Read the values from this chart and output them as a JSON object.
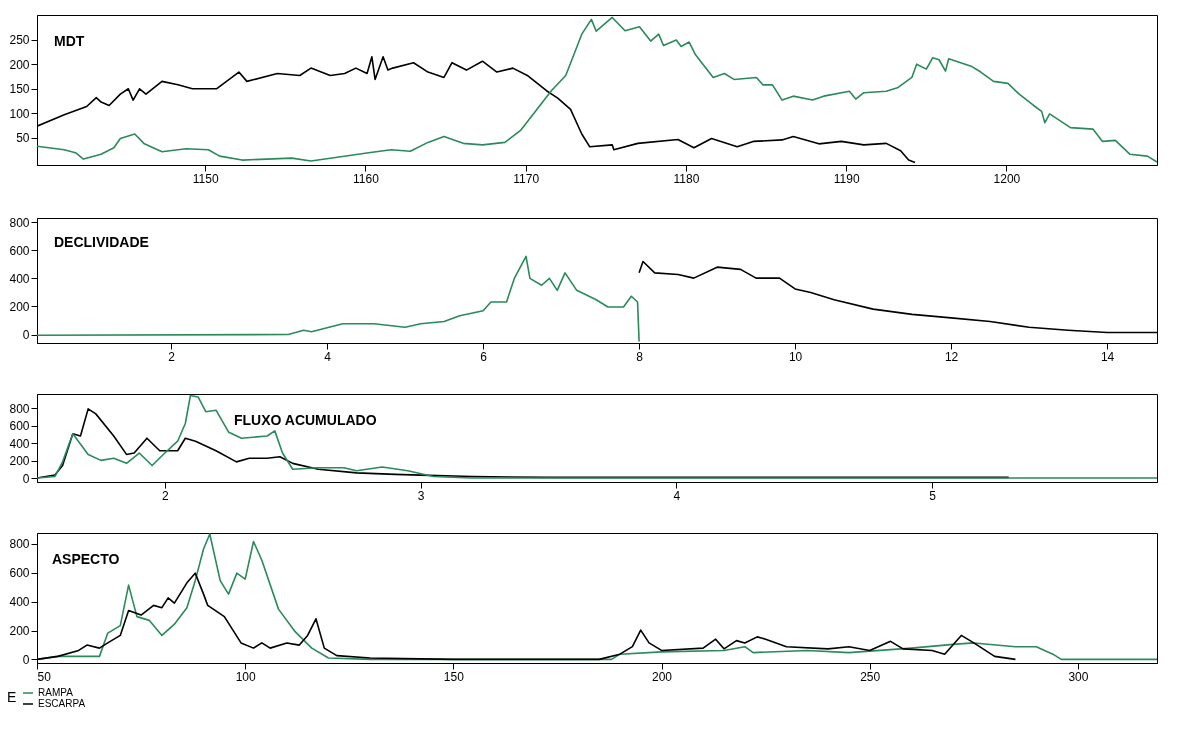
{
  "chart_data": [
    {
      "type": "line",
      "title": "MDT",
      "xlim": [
        1139.5,
        1209.4
      ],
      "ylim": [
        -5,
        300
      ],
      "xticks": [
        1150,
        1160,
        1170,
        1180,
        1190,
        1200
      ],
      "yticks": [
        50,
        100,
        150,
        200,
        250
      ],
      "grid": false,
      "legend": false,
      "series": [
        {
          "color": "#000000",
          "x": [
            1139.5,
            1141.2,
            1142.6,
            1143.2,
            1143.5,
            1144.0,
            1144.7,
            1145.2,
            1145.5,
            1145.9,
            1146.3,
            1147.3,
            1148.3,
            1149.2,
            1150.7,
            1152.1,
            1152.6,
            1154.5,
            1155.9,
            1156.6,
            1157.8,
            1158.7,
            1159.4,
            1160.1,
            1160.4,
            1160.6,
            1161.1,
            1161.4,
            1161.7,
            1163.0,
            1163.9,
            1164.9,
            1165.4,
            1166.3,
            1167.3,
            1168.2,
            1169.2,
            1170.1,
            1171.3,
            1172.0,
            1172.8,
            1173.5,
            1174.0,
            1175.4,
            1175.5,
            1177.0,
            1179.5,
            1180.5,
            1181.6,
            1183.2,
            1184.2,
            1186.0,
            1186.7,
            1188.3,
            1189.7,
            1191.1,
            1192.5,
            1193.4,
            1193.9,
            1194.3
          ],
          "values": [
            74,
            97,
            114,
            132,
            123,
            116,
            139,
            150,
            127,
            150,
            139,
            165,
            158,
            150,
            150,
            184,
            165,
            181,
            177,
            192,
            177,
            181,
            192,
            181,
            215,
            169,
            215,
            188,
            192,
            203,
            184,
            173,
            203,
            188,
            206,
            184,
            192,
            177,
            146,
            131,
            108,
            58,
            32,
            36,
            26,
            39,
            47,
            30,
            49,
            32,
            43,
            46,
            53,
            38,
            43,
            36,
            39,
            24,
            5,
            0
          ]
        },
        {
          "color": "#2a8a5a",
          "x": [
            1139.5,
            1141.2,
            1141.9,
            1142.4,
            1143.5,
            1144.3,
            1144.7,
            1145.6,
            1146.2,
            1147.3,
            1148.8,
            1150.2,
            1150.9,
            1152.3,
            1155.4,
            1156.6,
            1160.2,
            1161.6,
            1162.8,
            1163.9,
            1164.9,
            1166.1,
            1167.3,
            1168.7,
            1169.7,
            1170.6,
            1171.6,
            1172.5,
            1173.5,
            1174.1,
            1174.4,
            1175.4,
            1176.2,
            1177.1,
            1177.8,
            1178.3,
            1178.6,
            1179.4,
            1179.7,
            1180.2,
            1180.6,
            1181.7,
            1182.4,
            1183.0,
            1184.4,
            1184.8,
            1185.4,
            1186.0,
            1186.7,
            1187.9,
            1188.6,
            1190.2,
            1190.6,
            1191.1,
            1192.5,
            1193.2,
            1194.1,
            1194.4,
            1195.0,
            1195.4,
            1195.8,
            1196.2,
            1196.4,
            1197.8,
            1198.4,
            1199.2,
            1200.1,
            1200.8,
            1201.7,
            1202.2,
            1202.4,
            1202.7,
            1204.0,
            1205.4,
            1206.0,
            1206.8,
            1207.7,
            1208.8,
            1209.4
          ],
          "values": [
            33,
            26,
            20,
            7,
            17,
            30,
            49,
            58,
            38,
            22,
            28,
            26,
            13,
            5,
            9,
            3,
            20,
            26,
            23,
            41,
            53,
            39,
            36,
            41,
            66,
            104,
            146,
            177,
            261,
            291,
            267,
            295,
            268,
            276,
            247,
            261,
            238,
            249,
            236,
            245,
            219,
            173,
            181,
            169,
            173,
            158,
            158,
            127,
            135,
            127,
            135,
            145,
            129,
            142,
            145,
            152,
            173,
            200,
            190,
            213,
            209,
            186,
            211,
            196,
            184,
            165,
            161,
            139,
            116,
            104,
            81,
            99,
            71,
            68,
            43,
            45,
            17,
            13,
            1
          ]
        }
      ]
    },
    {
      "type": "line",
      "title": "DECLIVIDADE",
      "xlim": [
        0.28,
        14.64
      ],
      "ylim": [
        -60,
        830
      ],
      "xticks": [
        2,
        4,
        6,
        8,
        10,
        12,
        14
      ],
      "yticks": [
        0,
        200,
        400,
        600,
        800
      ],
      "grid": false,
      "legend": false,
      "series": [
        {
          "color": "#2a8a5a",
          "x": [
            0.28,
            3.5,
            3.7,
            3.8,
            4.2,
            4.6,
            5.0,
            5.2,
            5.5,
            5.7,
            6.0,
            6.1,
            6.3,
            6.4,
            6.55,
            6.6,
            6.75,
            6.85,
            6.95,
            7.05,
            7.2,
            7.45,
            7.6,
            7.8,
            7.9,
            7.98,
            8.0
          ],
          "values": [
            -5,
            0,
            31,
            20,
            77,
            77,
            52,
            77,
            93,
            134,
            170,
            232,
            232,
            400,
            557,
            400,
            351,
            400,
            315,
            439,
            315,
            248,
            196,
            196,
            273,
            232,
            -50
          ]
        },
        {
          "color": "#000000",
          "x": [
            8.0,
            8.05,
            8.2,
            8.5,
            8.7,
            9.0,
            9.3,
            9.5,
            9.8,
            10.0,
            10.2,
            10.5,
            11.0,
            11.5,
            12.0,
            12.5,
            13.0,
            13.5,
            14.0,
            14.64
          ],
          "values": [
            440,
            520,
            439,
            428,
            402,
            480,
            464,
            402,
            402,
            325,
            299,
            248,
            181,
            144,
            119,
            93,
            52,
            31,
            15,
            15
          ]
        }
      ]
    },
    {
      "type": "line",
      "title": "FLUXO ACUMULADO",
      "xlim": [
        1.5,
        5.88
      ],
      "ylim": [
        -45,
        960
      ],
      "xticks": [
        2,
        3,
        4,
        5
      ],
      "yticks": [
        0,
        200,
        400,
        600,
        800
      ],
      "grid": false,
      "legend": false,
      "series": [
        {
          "color": "#000000",
          "x": [
            1.5,
            1.57,
            1.6,
            1.64,
            1.67,
            1.7,
            1.73,
            1.8,
            1.85,
            1.88,
            1.93,
            1.98,
            2.05,
            2.08,
            2.12,
            2.2,
            2.28,
            2.33,
            2.4,
            2.45,
            2.5,
            2.6,
            2.75,
            2.9,
            3.0,
            3.2,
            3.5,
            5.3
          ],
          "values": [
            0,
            34,
            143,
            505,
            480,
            790,
            733,
            480,
            270,
            286,
            455,
            312,
            312,
            455,
            421,
            312,
            185,
            227,
            227,
            244,
            168,
            101,
            59,
            42,
            34,
            17,
            8,
            8
          ]
        },
        {
          "color": "#2a8a5a",
          "x": [
            1.5,
            1.57,
            1.6,
            1.64,
            1.7,
            1.75,
            1.8,
            1.85,
            1.9,
            1.95,
            2.0,
            2.05,
            2.08,
            2.1,
            2.13,
            2.16,
            2.2,
            2.25,
            2.3,
            2.4,
            2.43,
            2.46,
            2.5,
            2.6,
            2.7,
            2.75,
            2.85,
            2.95,
            3.05,
            3.2,
            5.88
          ],
          "values": [
            0,
            17,
            185,
            505,
            270,
            202,
            227,
            168,
            286,
            143,
            286,
            421,
            623,
            943,
            926,
            758,
            775,
            522,
            455,
            480,
            539,
            286,
            101,
            118,
            118,
            84,
            126,
            84,
            17,
            0,
            0
          ]
        }
      ]
    },
    {
      "type": "line",
      "title": "ASPECTO",
      "xlim": [
        50,
        319
      ],
      "ylim": [
        -25,
        875
      ],
      "xticks": [
        50,
        100,
        150,
        200,
        250,
        300
      ],
      "yticks": [
        0,
        200,
        400,
        600,
        800
      ],
      "grid": false,
      "legend": "bottom left",
      "legend_title": "E",
      "series": [
        {
          "name": "RAMPA",
          "color": "#2a8a5a",
          "x": [
            50,
            55,
            65,
            67,
            70,
            72,
            74,
            77,
            80,
            83,
            86,
            88,
            90,
            91.5,
            94,
            96,
            98,
            100,
            102,
            104,
            108,
            112,
            116,
            120,
            130,
            188,
            190,
            200,
            215,
            220,
            222,
            235,
            245,
            260,
            270,
            275,
            285,
            290,
            294,
            296,
            319
          ],
          "values": [
            0,
            21,
            21,
            182,
            234,
            514,
            296,
            270,
            166,
            244,
            358,
            545,
            764,
            868,
            545,
            452,
            597,
            556,
            816,
            686,
            348,
            192,
            78,
            10,
            0,
            0,
            36,
            52,
            62,
            88,
            47,
            62,
            47,
            78,
            104,
            114,
            88,
            88,
            36,
            0,
            0
          ]
        },
        {
          "name": "ESCARPA",
          "color": "#000000",
          "x": [
            50,
            55,
            60,
            62,
            65,
            67,
            70,
            72,
            75,
            78,
            80,
            81.5,
            83,
            86,
            88,
            90,
            91,
            95,
            99,
            102,
            104,
            106,
            110,
            113,
            115,
            117,
            119,
            122,
            130,
            150,
            185,
            190,
            193,
            195,
            197,
            200,
            210,
            213,
            215,
            218,
            220,
            223,
            225,
            230,
            240,
            245,
            250,
            255,
            258,
            265,
            268,
            272,
            275,
            280,
            285
          ],
          "values": [
            0,
            21,
            62,
            99,
            78,
            114,
            166,
            338,
            307,
            374,
            358,
            426,
            390,
            530,
            597,
            452,
            374,
            296,
            114,
            78,
            114,
            78,
            114,
            99,
            166,
            281,
            78,
            26,
            10,
            0,
            0,
            36,
            88,
            203,
            114,
            62,
            78,
            140,
            73,
            130,
            114,
            156,
            140,
            88,
            73,
            88,
            62,
            125,
            73,
            62,
            36,
            166,
            114,
            21,
            0
          ]
        }
      ]
    }
  ]
}
